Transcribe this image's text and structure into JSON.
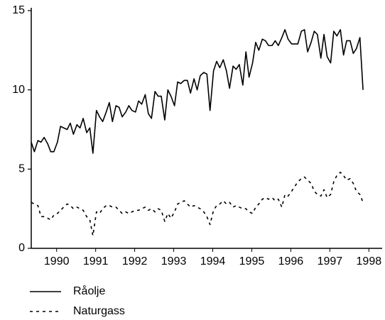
{
  "chart_data": {
    "type": "line",
    "x": [
      1989.85,
      1989.93,
      1990.02,
      1990.1,
      1990.18,
      1990.27,
      1990.35,
      1990.43,
      1990.52,
      1990.6,
      1990.68,
      1990.77,
      1990.85,
      1990.93,
      1991.02,
      1991.1,
      1991.18,
      1991.27,
      1991.35,
      1991.43,
      1991.52,
      1991.6,
      1991.68,
      1991.77,
      1991.85,
      1991.93,
      1992.02,
      1992.1,
      1992.18,
      1992.27,
      1992.35,
      1992.43,
      1992.52,
      1992.6,
      1992.68,
      1992.77,
      1992.85,
      1992.93,
      1993.02,
      1993.1,
      1993.18,
      1993.27,
      1993.35,
      1993.43,
      1993.52,
      1993.6,
      1993.68,
      1993.77,
      1993.85,
      1993.93,
      1994.02,
      1994.1,
      1994.18,
      1994.27,
      1994.35,
      1994.43,
      1994.52,
      1994.6,
      1994.68,
      1994.77,
      1994.85,
      1994.93,
      1995.02,
      1995.1,
      1995.18,
      1995.27,
      1995.35,
      1995.43,
      1995.52,
      1995.6,
      1995.68,
      1995.77,
      1995.85,
      1995.93,
      1996.02,
      1996.1,
      1996.18,
      1996.27,
      1996.35,
      1996.43,
      1996.52,
      1996.6,
      1996.68,
      1996.77,
      1996.85,
      1996.93,
      1997.02,
      1997.1,
      1997.18,
      1997.27,
      1997.35,
      1997.43,
      1997.52,
      1997.6,
      1997.68,
      1997.77,
      1997.85,
      1997.93,
      1998.02,
      1998.1,
      1998.18,
      1998.27,
      1998.35
    ],
    "series": [
      {
        "name": "Råolje",
        "color": "#000000",
        "line_style": "solid",
        "values": [
          6.7,
          6.1,
          6.8,
          6.7,
          7.0,
          6.6,
          6.1,
          6.1,
          6.7,
          7.7,
          7.6,
          7.5,
          7.9,
          7.2,
          7.8,
          7.6,
          8.2,
          7.3,
          7.6,
          6.0,
          8.7,
          8.3,
          8.0,
          8.6,
          9.2,
          8.0,
          9.0,
          8.9,
          8.3,
          8.6,
          9.0,
          8.7,
          8.6,
          9.3,
          9.1,
          9.7,
          8.5,
          8.2,
          9.9,
          9.6,
          9.6,
          8.1,
          10.0,
          9.6,
          9.0,
          10.5,
          10.4,
          10.6,
          10.6,
          9.8,
          10.7,
          10.0,
          10.9,
          11.1,
          11.0,
          8.7,
          11.2,
          11.8,
          11.4,
          11.9,
          11.2,
          10.1,
          11.5,
          11.3,
          11.6,
          10.3,
          12.4,
          10.8,
          11.7,
          13.0,
          12.5,
          13.2,
          13.1,
          12.8,
          12.8,
          13.1,
          12.8,
          13.3,
          13.8,
          13.2,
          12.9,
          12.9,
          12.9,
          13.7,
          13.8,
          12.4,
          13.0,
          13.7,
          13.5,
          12.0,
          13.5,
          12.1,
          11.7,
          13.7,
          13.4,
          13.8,
          12.2,
          13.1,
          13.1,
          12.3,
          12.6,
          13.3,
          10.0
        ]
      },
      {
        "name": "Naturgass",
        "color": "#000000",
        "line_style": "dashed",
        "values": [
          2.9,
          2.8,
          2.7,
          2.0,
          2.0,
          1.9,
          1.8,
          2.1,
          2.2,
          2.4,
          2.6,
          2.8,
          2.7,
          2.5,
          2.6,
          2.5,
          2.4,
          2.0,
          1.8,
          0.8,
          2.3,
          2.2,
          2.5,
          2.7,
          2.7,
          2.6,
          2.6,
          2.4,
          2.2,
          2.3,
          2.2,
          2.3,
          2.4,
          2.4,
          2.5,
          2.6,
          2.4,
          2.5,
          2.3,
          2.5,
          2.4,
          1.7,
          2.2,
          1.9,
          2.3,
          2.8,
          2.9,
          3.0,
          2.8,
          2.6,
          2.7,
          2.6,
          2.5,
          2.3,
          2.0,
          1.5,
          2.4,
          2.7,
          2.8,
          3.0,
          2.8,
          2.9,
          2.6,
          2.7,
          2.6,
          2.5,
          2.5,
          2.3,
          2.2,
          2.6,
          2.8,
          3.1,
          3.2,
          3.1,
          3.2,
          3.0,
          3.1,
          2.6,
          3.4,
          3.3,
          3.6,
          3.9,
          4.2,
          4.4,
          4.5,
          4.3,
          4.1,
          3.6,
          3.4,
          3.3,
          3.7,
          3.2,
          3.4,
          4.2,
          4.6,
          4.8,
          4.6,
          4.3,
          4.4,
          4.1,
          3.6,
          3.4,
          2.9
        ]
      }
    ],
    "xlim": [
      1989.85,
      1998.84
    ],
    "xticks": [
      {
        "value": 1990.5,
        "label": "1990"
      },
      {
        "value": 1991.5,
        "label": "1991"
      },
      {
        "value": 1992.5,
        "label": "1992"
      },
      {
        "value": 1993.5,
        "label": "1993"
      },
      {
        "value": 1994.5,
        "label": "1994"
      },
      {
        "value": 1995.5,
        "label": "1995"
      },
      {
        "value": 1996.5,
        "label": "1996"
      },
      {
        "value": 1997.5,
        "label": "1997"
      },
      {
        "value": 1998.5,
        "label": "1998"
      }
    ],
    "ylim": [
      0,
      15
    ],
    "yticks": [
      0,
      5,
      10,
      15
    ],
    "grid": false,
    "legend": "bottom"
  }
}
